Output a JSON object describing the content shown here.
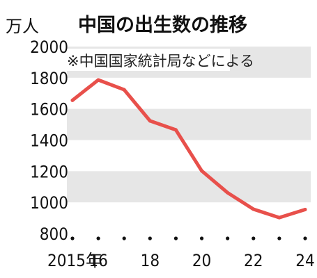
{
  "chart_data": {
    "type": "line",
    "title": "中国の出生数の推移",
    "ylabel": "万人",
    "note": "※中国国家統計局などによる",
    "x": [
      2015,
      2016,
      2017,
      2018,
      2019,
      2020,
      2021,
      2022,
      2023,
      2024
    ],
    "values": [
      1655,
      1786,
      1723,
      1523,
      1465,
      1202,
      1062,
      956,
      902,
      954
    ],
    "x_tick_labels": [
      {
        "x": 2015,
        "label": "2015年"
      },
      {
        "x": 2016,
        "label": "16"
      },
      {
        "x": 2018,
        "label": "18"
      },
      {
        "x": 2020,
        "label": "20"
      },
      {
        "x": 2022,
        "label": "22"
      },
      {
        "x": 2024,
        "label": "24"
      }
    ],
    "y_ticks": [
      800,
      1000,
      1200,
      1400,
      1600,
      1800,
      2000
    ],
    "ylim": [
      800,
      2000
    ],
    "xlim": [
      2015,
      2024
    ],
    "line_color": "#e8504b",
    "band_color": "#e6e6e6",
    "grid": false,
    "banded_background": true
  }
}
